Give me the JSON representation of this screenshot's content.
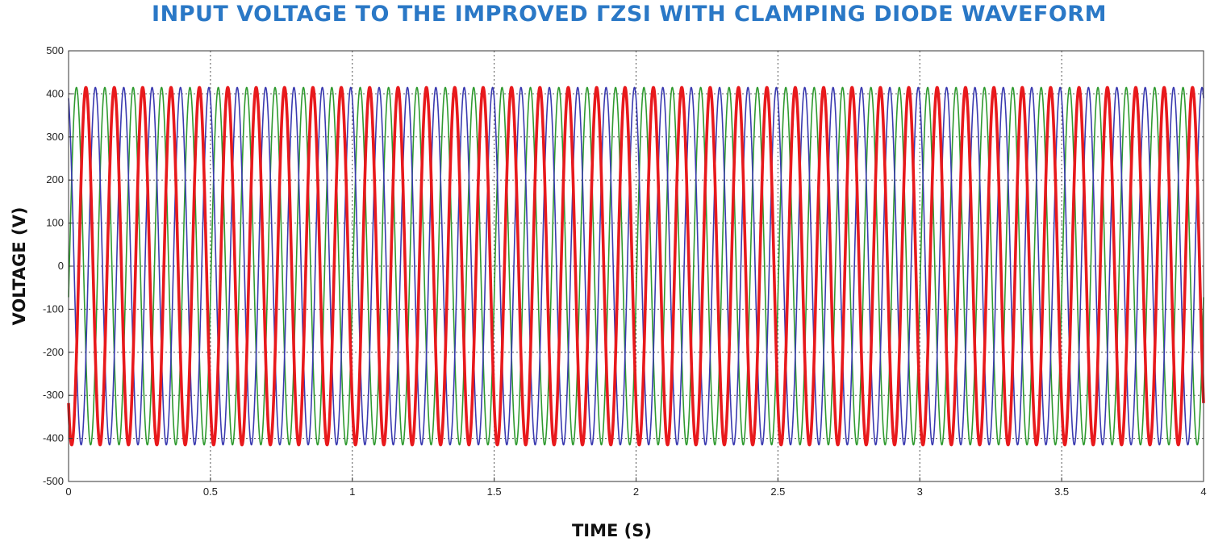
{
  "chart_data": {
    "type": "line",
    "title": "INPUT VOLTAGE TO THE IMPROVED ΓZSI WITH CLAMPING DIODE WAVEFORM",
    "xlabel": "TIME  (S)",
    "ylabel": "VOLTAGE  (V)",
    "xlim": [
      0,
      4
    ],
    "ylim": [
      -500,
      500
    ],
    "x_ticks": [
      "0",
      "0.5",
      "1",
      "1.5",
      "2",
      "2.5",
      "3",
      "3.5",
      "4"
    ],
    "y_ticks": [
      "500",
      "400",
      "300",
      "200",
      "100",
      "0",
      "-100",
      "-200",
      "-300",
      "-400",
      "-500"
    ],
    "grid": true,
    "legend": false,
    "signal": {
      "waveform": "three-phase sine",
      "amplitude": 415,
      "cycles_over_range": 40,
      "phase_shift_deg": 120
    },
    "series": [
      {
        "color": "#e8191c",
        "phase_deg": 230,
        "stroke": "thick"
      },
      {
        "color": "#3a3ab0",
        "phase_deg": 110,
        "stroke": "thin"
      },
      {
        "color": "#2f9a2f",
        "phase_deg": 350,
        "stroke": "thin"
      }
    ]
  }
}
